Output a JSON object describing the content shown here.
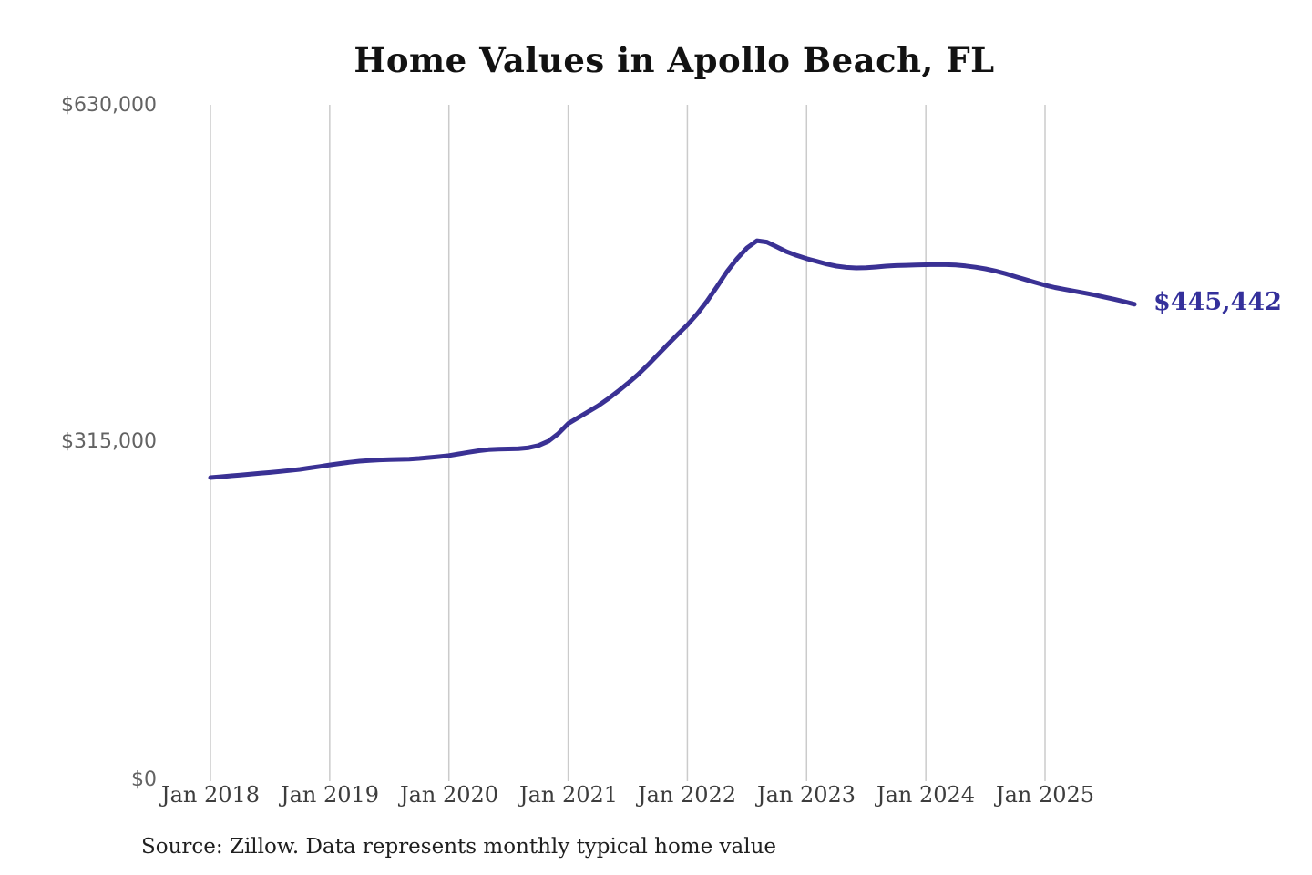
{
  "title": "Home Values in Apollo Beach, FL",
  "source_note": "Source: Zillow. Data represents monthly typical home value",
  "end_label": "$445,442",
  "colors": {
    "line": "#3a3194",
    "end_label": "#34309b",
    "gridline": "#cbcbcb",
    "title": "#121212",
    "y_label": "#636363",
    "x_label": "#3d3d3d",
    "source": "#1f1f1f",
    "background": "#ffffff"
  },
  "y_axis": {
    "labels": [
      "$630,000",
      "$315,000",
      "$0"
    ]
  },
  "x_axis": {
    "labels": [
      "Jan 2018",
      "Jan 2019",
      "Jan 2020",
      "Jan 2021",
      "Jan 2022",
      "Jan 2023",
      "Jan 2024",
      "Jan 2025"
    ]
  },
  "chart_data": {
    "type": "line",
    "title": "Home Values in Apollo Beach, FL",
    "xlabel": "",
    "ylabel": "",
    "ylim": [
      0,
      630000
    ],
    "y_ticks": [
      0,
      315000,
      630000
    ],
    "y_tick_labels": [
      "$0",
      "$315,000",
      "$630,000"
    ],
    "x_tick_labels": [
      "Jan 2018",
      "Jan 2019",
      "Jan 2020",
      "Jan 2021",
      "Jan 2022",
      "Jan 2023",
      "Jan 2024",
      "Jan 2025"
    ],
    "grid": "vertical-only",
    "legend": "none",
    "annotation": {
      "text": "$445,442",
      "value": 445442,
      "position": "line-end"
    },
    "series": [
      {
        "name": "Typical home value",
        "color": "#3a3194",
        "x": [
          "2018-01",
          "2018-02",
          "2018-03",
          "2018-04",
          "2018-05",
          "2018-06",
          "2018-07",
          "2018-08",
          "2018-09",
          "2018-10",
          "2018-11",
          "2018-12",
          "2019-01",
          "2019-02",
          "2019-03",
          "2019-04",
          "2019-05",
          "2019-06",
          "2019-07",
          "2019-08",
          "2019-09",
          "2019-10",
          "2019-11",
          "2019-12",
          "2020-01",
          "2020-02",
          "2020-03",
          "2020-04",
          "2020-05",
          "2020-06",
          "2020-07",
          "2020-08",
          "2020-09",
          "2020-10",
          "2020-11",
          "2020-12",
          "2021-01",
          "2021-02",
          "2021-03",
          "2021-04",
          "2021-05",
          "2021-06",
          "2021-07",
          "2021-08",
          "2021-09",
          "2021-10",
          "2021-11",
          "2021-12",
          "2022-01",
          "2022-02",
          "2022-03",
          "2022-04",
          "2022-05",
          "2022-06",
          "2022-07",
          "2022-08",
          "2022-09",
          "2022-10",
          "2022-11",
          "2022-12",
          "2023-01",
          "2023-02",
          "2023-03",
          "2023-04",
          "2023-05",
          "2023-06",
          "2023-07",
          "2023-08",
          "2023-09",
          "2023-10",
          "2023-11",
          "2023-12",
          "2024-01",
          "2024-02",
          "2024-03",
          "2024-04",
          "2024-05",
          "2024-06",
          "2024-07",
          "2024-08",
          "2024-09",
          "2024-10",
          "2024-11",
          "2024-12",
          "2025-01",
          "2025-02",
          "2025-03",
          "2025-04",
          "2025-05",
          "2025-06",
          "2025-07",
          "2025-08",
          "2025-09",
          "2025-10"
        ],
        "values": [
          283500,
          284300,
          285100,
          285900,
          286700,
          287500,
          288300,
          289200,
          290100,
          291200,
          292500,
          293900,
          295300,
          296600,
          297800,
          298800,
          299500,
          300000,
          300300,
          300500,
          300800,
          301400,
          302200,
          303100,
          304100,
          305600,
          307200,
          308600,
          309600,
          310100,
          310300,
          310600,
          311400,
          313500,
          317500,
          324500,
          334000,
          339500,
          345000,
          350500,
          357000,
          364000,
          371500,
          379500,
          388500,
          398000,
          407500,
          417000,
          426000,
          436500,
          448500,
          462000,
          476000,
          488000,
          498000,
          504800,
          503500,
          499000,
          494500,
          491000,
          488000,
          485500,
          483000,
          481000,
          479800,
          479300,
          479500,
          480200,
          481000,
          481500,
          481800,
          482000,
          482300,
          482500,
          482400,
          482000,
          481200,
          480000,
          478500,
          476500,
          474000,
          471200,
          468500,
          465800,
          463200,
          461000,
          459200,
          457500,
          455800,
          454000,
          452000,
          450000,
          447800,
          445442
        ]
      }
    ]
  }
}
